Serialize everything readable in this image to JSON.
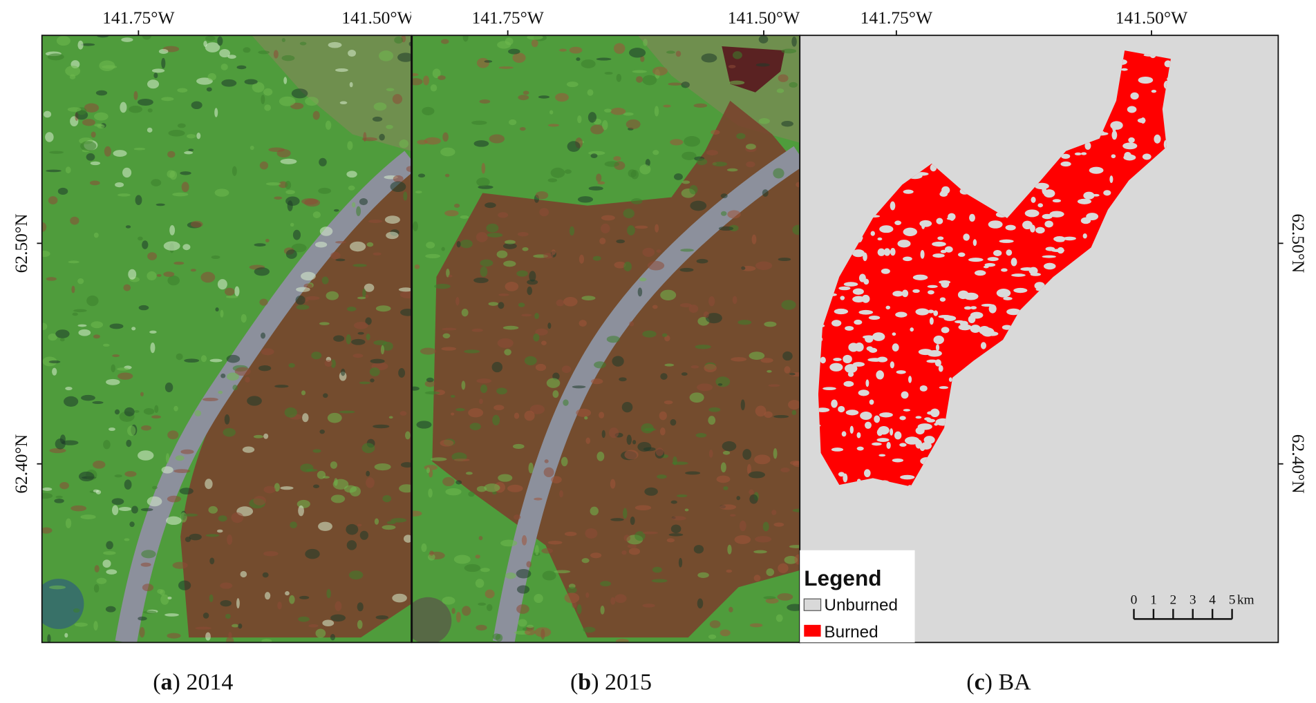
{
  "panels": [
    {
      "label": "a",
      "title": "2014",
      "top_labels": [
        "141.75°W",
        "141.50°W"
      ],
      "side_labels": [
        "62.50°N",
        "62.40°N"
      ]
    },
    {
      "label": "b",
      "title": "2015",
      "top_labels": [
        "141.75°W",
        "141.50°W"
      ]
    },
    {
      "label": "c",
      "title": "BA",
      "top_labels": [
        "141.75°W",
        "141.50°W"
      ],
      "side_labels": [
        "62.50°N",
        "62.40°N"
      ]
    }
  ],
  "legend": {
    "title": "Legend",
    "items": [
      "Unburned",
      "Burned"
    ]
  },
  "scale_bar": {
    "ticks": [
      0,
      1,
      2,
      3,
      4,
      5
    ],
    "unit": "km"
  }
}
